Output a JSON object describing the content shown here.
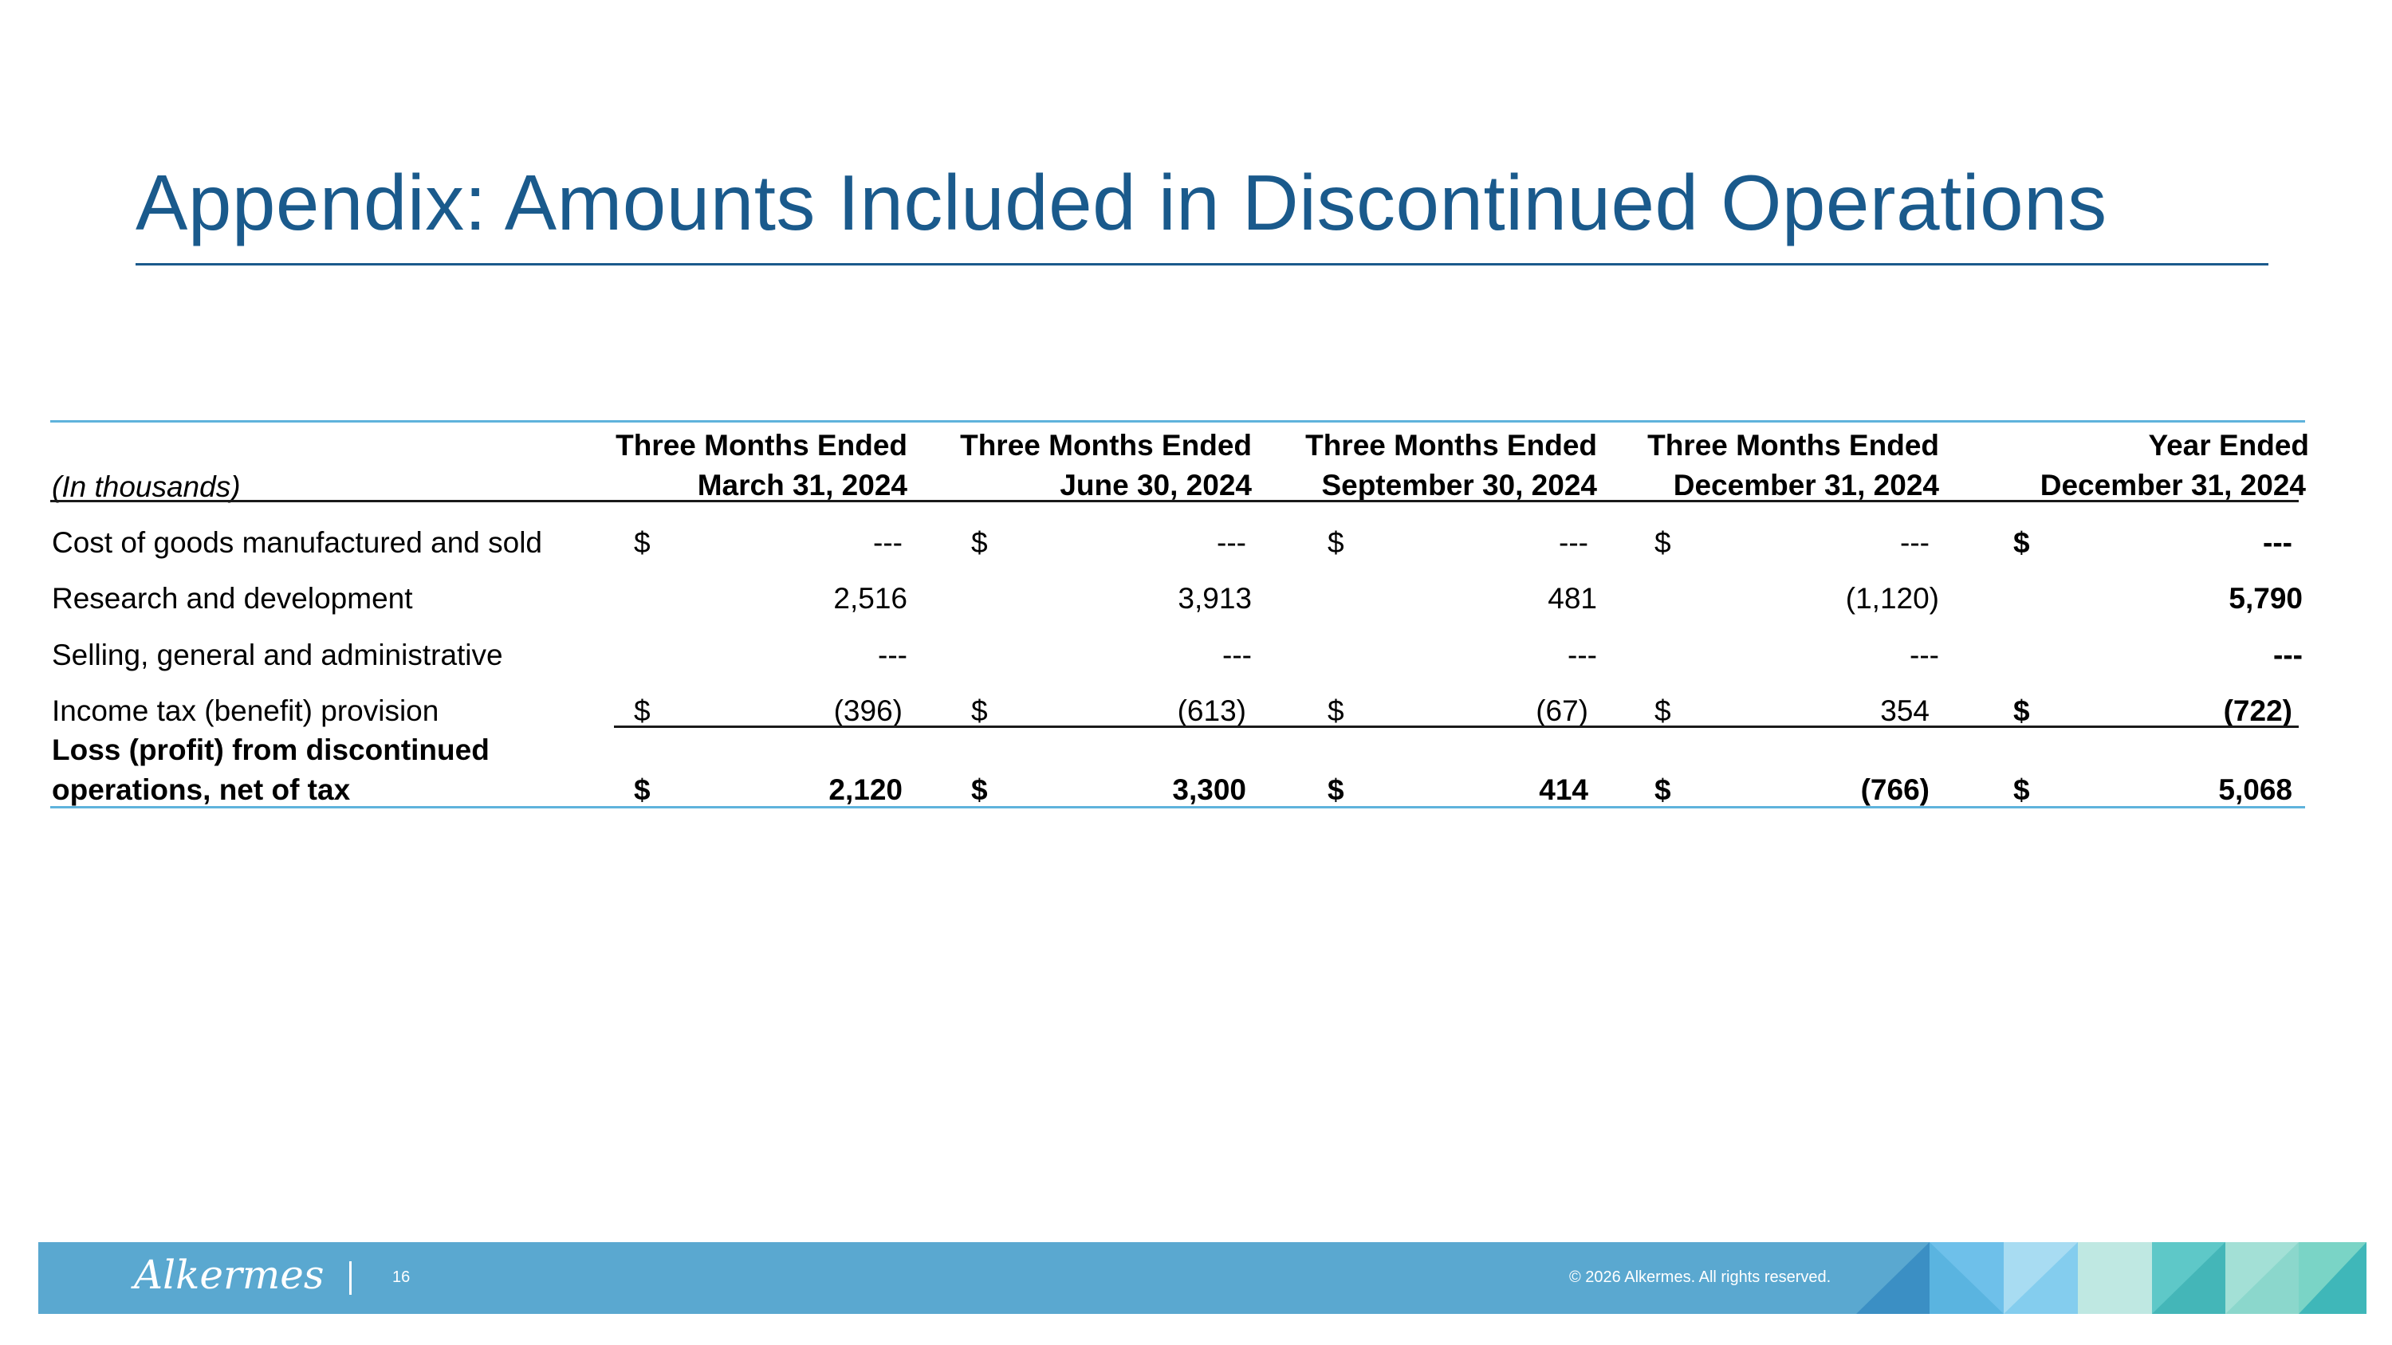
{
  "slide": {
    "title": "Appendix: Amounts Included in Discontinued Operations",
    "page_number": "16",
    "copyright": "© 2026 Alkermes. All rights reserved.",
    "logo_text": "Alkermes",
    "colors": {
      "title": "#1a5a8c",
      "footer": "#5aa8d0",
      "rule_accent": "#5fb3dc"
    }
  },
  "table": {
    "units_label": "(In thousands)",
    "columns": [
      {
        "line1": "Three Months Ended",
        "line2": "March 31, 2024"
      },
      {
        "line1": "Three Months Ended",
        "line2": "June 30, 2024"
      },
      {
        "line1": "Three Months Ended",
        "line2": "September 30, 2024"
      },
      {
        "line1": "Three Months Ended",
        "line2": "December 31, 2024"
      },
      {
        "line1": "Year Ended",
        "line2": "December 31, 2024"
      }
    ],
    "rows": [
      {
        "label": "Cost of goods manufactured and sold",
        "currency": "$",
        "values": [
          "---",
          "---",
          "---",
          "---",
          "---"
        ]
      },
      {
        "label": "Research and development",
        "values": [
          "2,516",
          "3,913",
          "481",
          "(1,120)",
          "5,790"
        ]
      },
      {
        "label": "Selling, general and administrative",
        "values": [
          "---",
          "---",
          "---",
          "---",
          "---"
        ]
      },
      {
        "label": "Income tax (benefit) provision",
        "currency": "$",
        "values": [
          "(396)",
          "(613)",
          "(67)",
          "354",
          "(722)"
        ]
      }
    ],
    "total": {
      "label_line1": "Loss (profit) from discontinued",
      "label_line2": "operations, net of tax",
      "currency": "$",
      "values": [
        "2,120",
        "3,300",
        "414",
        "(766)",
        "5,068"
      ]
    }
  }
}
